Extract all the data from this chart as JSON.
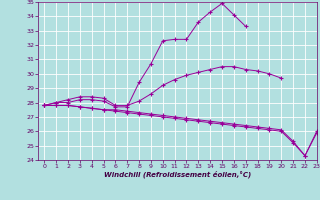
{
  "x": [
    0,
    1,
    2,
    3,
    4,
    5,
    6,
    7,
    8,
    9,
    10,
    11,
    12,
    13,
    14,
    15,
    16,
    17,
    18,
    19,
    20,
    21,
    22,
    23
  ],
  "line1": [
    27.8,
    28.0,
    28.0,
    28.2,
    28.2,
    28.1,
    27.7,
    27.7,
    29.4,
    30.7,
    32.3,
    32.4,
    32.4,
    33.6,
    34.3,
    34.9,
    34.1,
    33.3,
    null,
    null,
    null,
    null,
    null,
    null
  ],
  "line2": [
    27.8,
    28.0,
    28.2,
    28.4,
    28.4,
    28.3,
    27.8,
    27.8,
    28.1,
    28.6,
    29.2,
    29.6,
    29.9,
    30.1,
    30.3,
    30.5,
    30.5,
    30.3,
    30.2,
    30.0,
    29.7,
    null,
    null,
    null
  ],
  "line3": [
    27.8,
    27.8,
    27.8,
    27.7,
    27.6,
    27.5,
    27.5,
    27.4,
    27.3,
    27.2,
    27.1,
    27.0,
    26.9,
    26.8,
    26.7,
    26.6,
    26.5,
    26.4,
    26.3,
    26.2,
    26.1,
    25.3,
    24.3,
    26.0
  ],
  "line4": [
    27.8,
    27.8,
    27.8,
    27.7,
    27.6,
    27.5,
    27.4,
    27.3,
    27.2,
    27.1,
    27.0,
    26.9,
    26.8,
    26.7,
    26.6,
    26.5,
    26.4,
    26.3,
    26.2,
    26.1,
    26.0,
    25.2,
    24.3,
    25.9
  ],
  "color": "#990099",
  "bg_color": "#b2e0e0",
  "grid_color": "#ffffff",
  "xlabel": "Windchill (Refroidissement éolien,°C)",
  "ylim": [
    24,
    35
  ],
  "xlim": [
    -0.5,
    23
  ],
  "yticks": [
    24,
    25,
    26,
    27,
    28,
    29,
    30,
    31,
    32,
    33,
    34,
    35
  ],
  "xticks": [
    0,
    1,
    2,
    3,
    4,
    5,
    6,
    7,
    8,
    9,
    10,
    11,
    12,
    13,
    14,
    15,
    16,
    17,
    18,
    19,
    20,
    21,
    22,
    23
  ]
}
